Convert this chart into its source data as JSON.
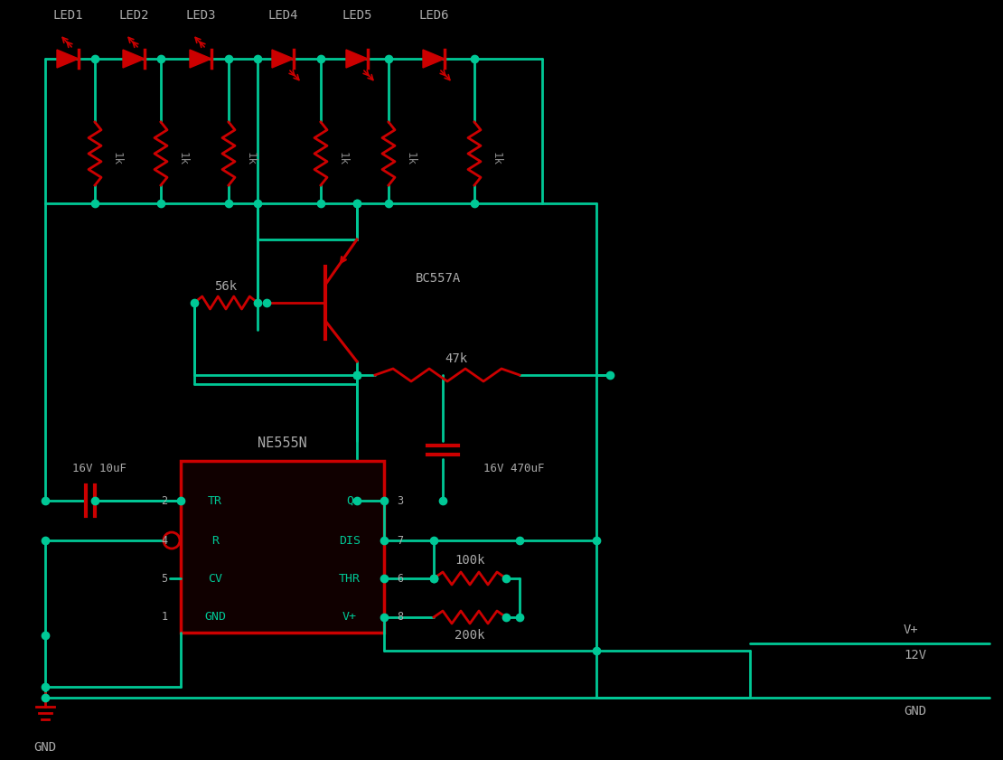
{
  "bg_color": "#000000",
  "wire_color": "#00c896",
  "comp_color": "#cc0000",
  "label_color": "#888888",
  "fig_width": 11.1,
  "fig_height": 8.41,
  "dpi": 100,
  "led_labels": [
    "LED1",
    "LED2",
    "LED3",
    "LED4",
    "LED5",
    "LED6"
  ],
  "ic_name": "NE555N",
  "transistor_name": "BC557A",
  "r56k": "56k",
  "r47k": "47k",
  "r100k": "100k",
  "r200k": "200k",
  "cap1_label": "16V 10uF",
  "cap2_label": "16V 470uF",
  "vplus_label": "V+",
  "v12_label": "12V",
  "gnd_label": "GND",
  "res_labels": [
    "1k",
    "1k",
    "1k",
    "1k",
    "1k",
    "1k"
  ]
}
